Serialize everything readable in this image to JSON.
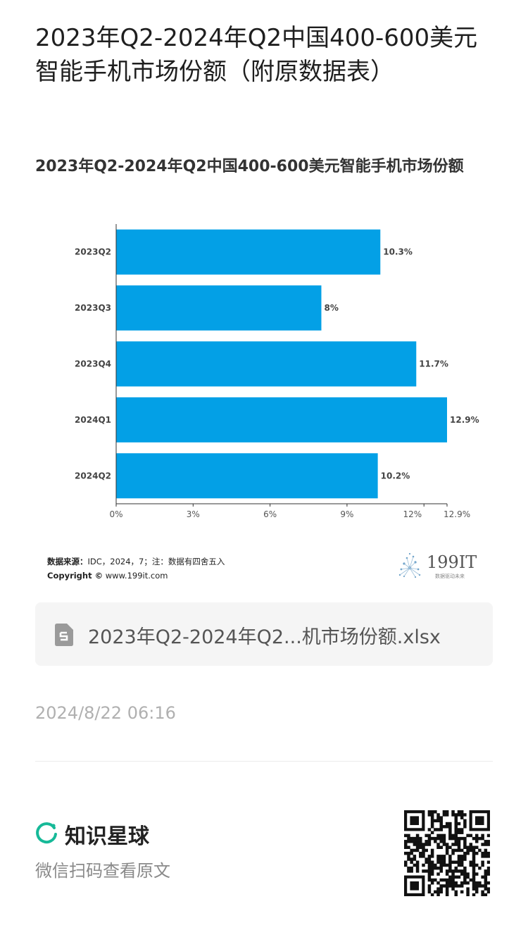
{
  "post": {
    "title": "2023年Q2-2024年Q2中国400-600美元智能手机市场份额（附原数据表）",
    "date": "2024/8/22 06:16"
  },
  "chart_card": {
    "source_label": "数据来源：",
    "source_text": "IDC，2024，7；注：数据有四舍五入",
    "copyright_label": "Copyright ©",
    "copyright_url": "www.199it.com",
    "brand_number": "199IT",
    "brand_tagline": "数据驱动未来"
  },
  "chart_data": {
    "type": "bar",
    "orientation": "horizontal",
    "title": "2023年Q2-2024年Q2中国400-600美元智能手机市场份额",
    "categories": [
      "2023Q2",
      "2023Q3",
      "2023Q4",
      "2024Q1",
      "2024Q2"
    ],
    "values": [
      10.3,
      8,
      11.7,
      12.9,
      10.2
    ],
    "value_labels": [
      "10.3%",
      "8%",
      "11.7%",
      "12.9%",
      "10.2%"
    ],
    "x_ticks": [
      0,
      3,
      6,
      9,
      12,
      12.9
    ],
    "x_tick_labels": [
      "0%",
      "3%",
      "6%",
      "9%",
      "12%",
      "12.9%"
    ],
    "xlim": [
      0,
      12.9
    ],
    "bar_color": "#03a0e6",
    "grid": false
  },
  "attachment": {
    "file_name": "2023年Q2-2024年Q2...机市场份额.xlsx",
    "icon": "spreadsheet-file-icon"
  },
  "footer": {
    "brand": "知识星球",
    "scan_hint": "微信扫码查看原文",
    "brand_color": "#16b998"
  }
}
